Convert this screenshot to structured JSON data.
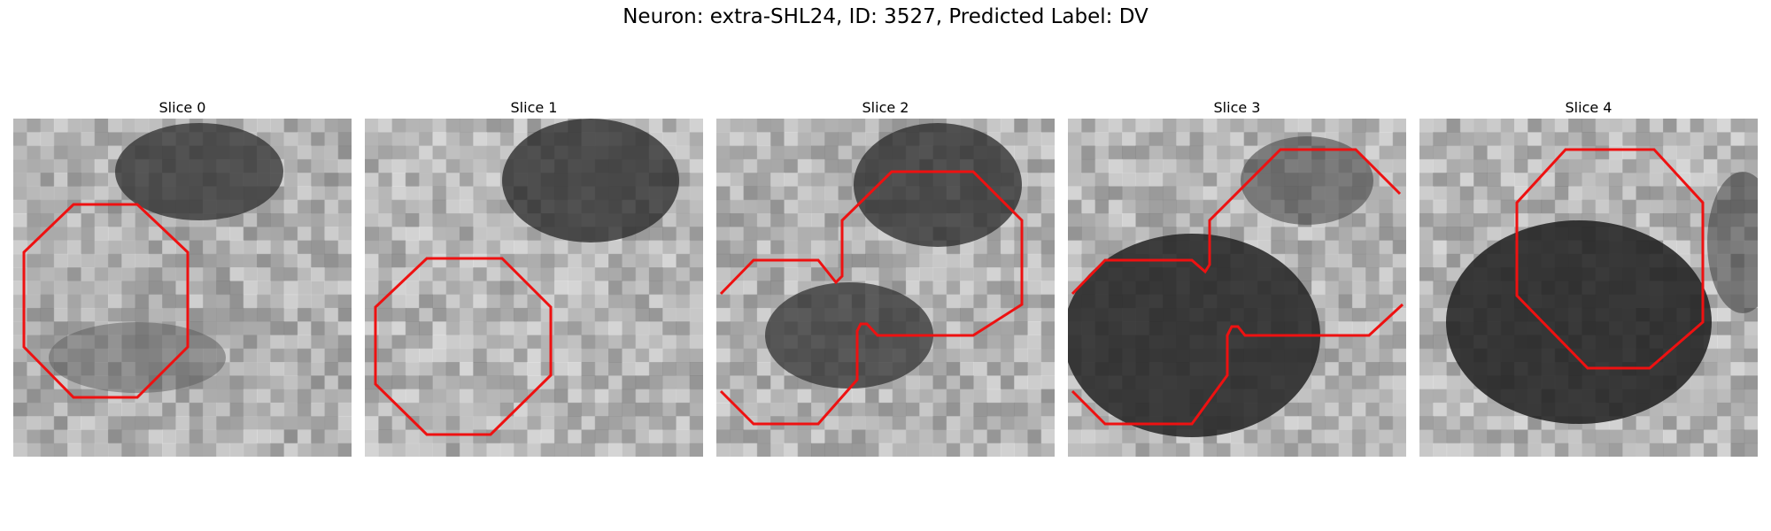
{
  "figure": {
    "title": "Neuron: extra-SHL24, ID: 3527, Predicted Label: DV",
    "contour_color": "#ee1111",
    "panels": [
      {
        "title": "Slice 0",
        "texture": "slice0-blob"
      },
      {
        "title": "Slice 1",
        "texture": "slice1-blob"
      },
      {
        "title": "Slice 2",
        "texture": "slice2-blob"
      },
      {
        "title": "Slice 3",
        "texture": "slice3-blob"
      },
      {
        "title": "Slice 4",
        "texture": "slice4-blob"
      }
    ]
  }
}
